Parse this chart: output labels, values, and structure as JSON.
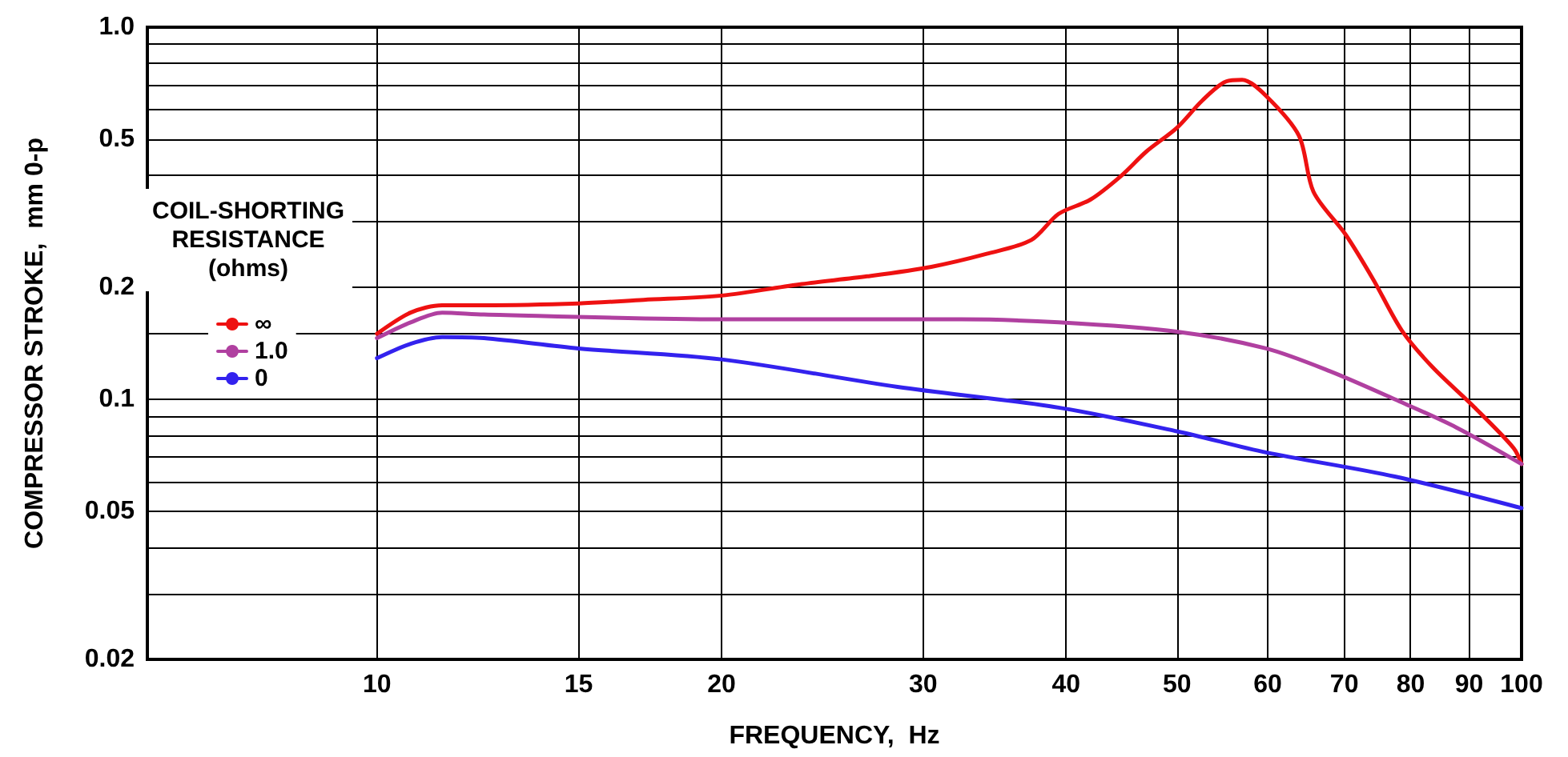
{
  "chart_data": {
    "type": "line",
    "xlabel": "FREQUENCY,  Hz",
    "ylabel": "COMPRESSOR STROKE,  mm 0-p",
    "legend_title": "COIL-SHORTING\nRESISTANCE\n(ohms)",
    "log": "xy",
    "grid": true,
    "legend": "left",
    "marker": "none",
    "line_style": "solid",
    "xlim": [
      6.3,
      100
    ],
    "xticks": [
      10,
      15,
      20,
      30,
      40,
      50,
      60,
      70,
      80,
      90,
      100
    ],
    "ylim": [
      0.02,
      1
    ],
    "yticks": [
      0.02,
      {
        "value": 0.03,
        "label": null
      },
      {
        "value": 0.04,
        "label": null
      },
      0.05,
      {
        "value": 0.06,
        "label": null
      },
      {
        "value": 0.07,
        "label": null
      },
      {
        "value": 0.08,
        "label": null
      },
      {
        "value": 0.09,
        "label": null
      },
      0.1,
      {
        "value": 0.15,
        "label": null
      },
      0.2,
      {
        "value": 0.3,
        "label": null
      },
      {
        "value": 0.4,
        "label": null
      },
      0.5,
      {
        "value": 0.6,
        "label": null
      },
      {
        "value": 0.7,
        "label": null
      },
      {
        "value": 0.8,
        "label": null
      },
      {
        "value": 0.9,
        "label": null
      },
      {
        "value": 1,
        "label": "1.0"
      }
    ],
    "series": [
      {
        "name": "∞",
        "color": "#ee1111",
        "x": [
          10,
          10.7,
          11.4,
          12.4,
          15,
          17.1,
          20,
          23.5,
          26.8,
          30.5,
          34.1,
          37.3,
          39.4,
          42,
          44.7,
          47,
          50,
          52.6,
          55.2,
          57,
          59.8,
          63.9,
          65.8,
          70.2,
          74.2,
          78.6,
          83.6,
          91,
          98.4,
          100
        ],
        "values": [
          0.15,
          0.171,
          0.179,
          0.179,
          0.181,
          0.185,
          0.19,
          0.204,
          0.214,
          0.227,
          0.246,
          0.268,
          0.315,
          0.344,
          0.399,
          0.463,
          0.537,
          0.635,
          0.715,
          0.722,
          0.654,
          0.511,
          0.361,
          0.277,
          0.21,
          0.153,
          0.122,
          0.095,
          0.074,
          0.067
        ]
      },
      {
        "name": "1.0",
        "color": "#b040a0",
        "x": [
          10,
          10.7,
          11.4,
          12.4,
          20,
          32.4,
          39.4,
          50,
          59.8,
          68,
          77.5,
          87.7,
          100
        ],
        "values": [
          0.146,
          0.161,
          0.171,
          0.169,
          0.164,
          0.164,
          0.161,
          0.152,
          0.137,
          0.119,
          0.1,
          0.084,
          0.067
        ]
      },
      {
        "name": "0",
        "color": "#3322ee",
        "x": [
          10,
          10.7,
          11.4,
          12.4,
          15,
          20,
          28.5,
          39.4,
          50,
          59.8,
          77.5,
          100
        ],
        "values": [
          0.129,
          0.141,
          0.147,
          0.146,
          0.137,
          0.128,
          0.108,
          0.095,
          0.082,
          0.072,
          0.062,
          0.051
        ]
      }
    ]
  }
}
